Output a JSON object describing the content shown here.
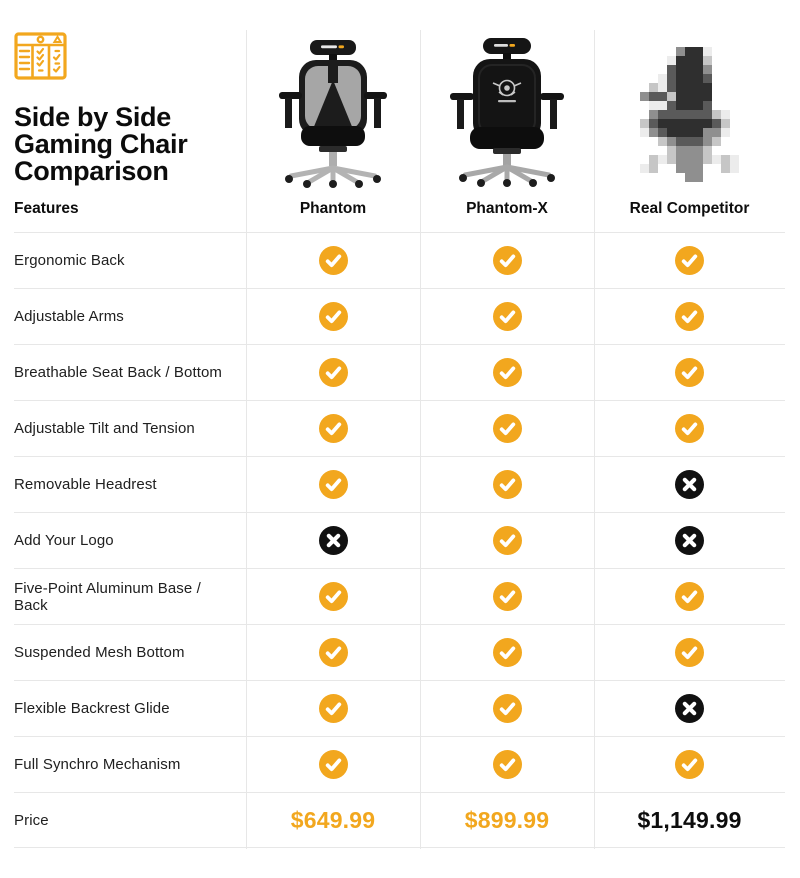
{
  "header": {
    "icon": "comparison-checklist-icon",
    "title": "Side by Side Gaming Chair Comparison"
  },
  "columns_header": {
    "features_label": "Features"
  },
  "products": [
    {
      "name": "Phantom",
      "image": "phantom-chair-image",
      "price": "$649.99",
      "price_style": "accent"
    },
    {
      "name": "Phantom-X",
      "image": "phantom-x-chair-image",
      "price": "$899.99",
      "price_style": "accent"
    },
    {
      "name": "Real Competitor",
      "image": "pixelated-competitor-chair-image",
      "price": "$1,149.99",
      "price_style": "dark"
    }
  ],
  "features": [
    {
      "label": "Ergonomic Back",
      "values": [
        true,
        true,
        true
      ]
    },
    {
      "label": "Adjustable Arms",
      "values": [
        true,
        true,
        true
      ]
    },
    {
      "label": "Breathable Seat Back / Bottom",
      "values": [
        true,
        true,
        true
      ]
    },
    {
      "label": "Adjustable Tilt and Tension",
      "values": [
        true,
        true,
        true
      ]
    },
    {
      "label": "Removable Headrest",
      "values": [
        true,
        true,
        false
      ]
    },
    {
      "label": "Add Your Logo",
      "values": [
        false,
        true,
        false
      ]
    },
    {
      "label": "Five-Point Aluminum Base / Back",
      "values": [
        true,
        true,
        true
      ]
    },
    {
      "label": "Suspended Mesh Bottom",
      "values": [
        true,
        true,
        true
      ]
    },
    {
      "label": "Flexible Backrest Glide",
      "values": [
        true,
        true,
        false
      ]
    },
    {
      "label": "Full Synchro Mechanism",
      "values": [
        true,
        true,
        true
      ]
    }
  ],
  "price_row": {
    "label": "Price"
  },
  "colors": {
    "accent": "#F2A71E",
    "check_bg": "#F2A71E",
    "cross_bg": "#111111",
    "divider": "#E7E7E7",
    "text": "#1D1D1F"
  }
}
